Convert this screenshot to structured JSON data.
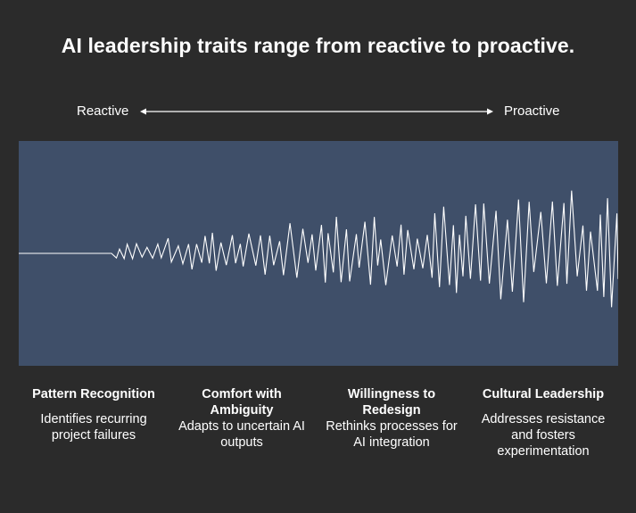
{
  "title": "AI leadership traits range from reactive to proactive.",
  "scale": {
    "left_label": "Reactive",
    "right_label": "Proactive"
  },
  "colors": {
    "background": "#2b2b2b",
    "panel": "#3f4f69",
    "line": "#ffffff"
  },
  "traits": [
    {
      "title": "Pattern Recognition",
      "description": "Identifies recurring project failures"
    },
    {
      "title": "Comfort with Ambiguity",
      "description": "Adapts to uncertain AI outputs"
    },
    {
      "title": "Willingness to Redesign",
      "description": "Rethinks processes for AI integration"
    },
    {
      "title": "Cultural Leadership",
      "description": "Addresses resistance and fosters experimentation"
    }
  ]
}
